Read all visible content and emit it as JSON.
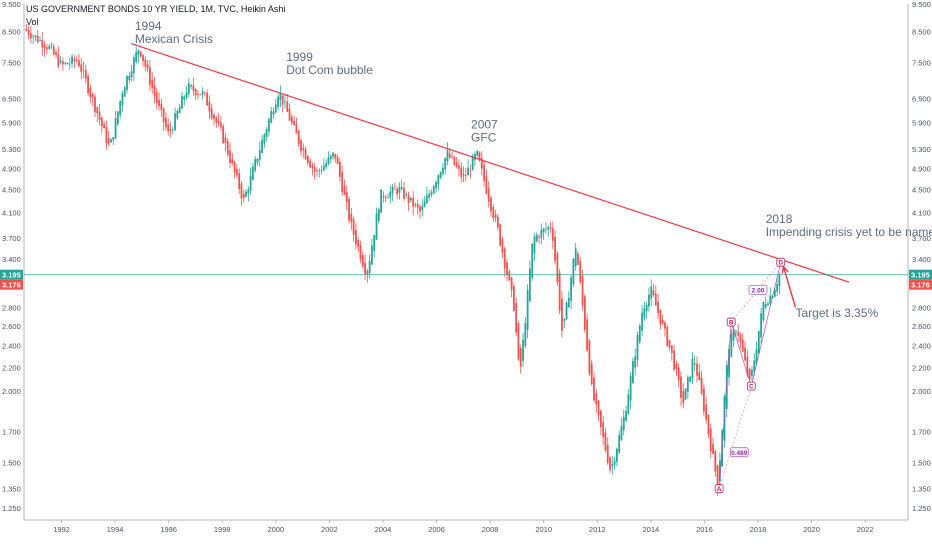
{
  "header": {
    "symbol_line": "US GOVERNMENT BONDS 10 YR YIELD, 1M, TVC, Heikin Ashi",
    "volume_label": "Vol"
  },
  "annotations": [
    {
      "line1": "1994",
      "line2": "Mexican Crisis",
      "year": 1994.85,
      "yield": 8.55
    },
    {
      "line1": "1999",
      "line2": "Dot Com bubble",
      "year": 2000.5,
      "yield": 7.55
    },
    {
      "line1": "2007",
      "line2": "GFC",
      "year": 2007.4,
      "yield": 5.75
    },
    {
      "line1": "2018",
      "line2": "Impending crisis yet to be named?",
      "year": 2018.4,
      "yield": 3.93
    }
  ],
  "target_text": "Target is 3.35%",
  "price_labels": {
    "current": "3.195",
    "prior_close": "3.176"
  },
  "colors": {
    "up": "#26a69a",
    "down": "#ef5350",
    "trendline": "#f23645",
    "pattern": "#ab47bc",
    "current_line": "#26a69a"
  },
  "chart_data": {
    "type": "candlestick",
    "style": "Heikin Ashi",
    "y_scale": "log",
    "xlim": [
      1990.6,
      2023.6
    ],
    "ylim": [
      1.19,
      9.5
    ],
    "x_ticks": [
      "1992",
      "1994",
      "1996",
      "1998",
      "2000",
      "2002",
      "2004",
      "2006",
      "2008",
      "2010",
      "2012",
      "2014",
      "2016",
      "2018",
      "2020",
      "2022"
    ],
    "y_ticks": [
      "9.500",
      "8.500",
      "7.500",
      "6.500",
      "5.900",
      "5.300",
      "4.900",
      "4.500",
      "4.100",
      "3.700",
      "3.400",
      "3.100",
      "2.800",
      "2.600",
      "2.400",
      "2.200",
      "2.000",
      "1.700",
      "1.500",
      "1.350",
      "1.250"
    ],
    "series_path": [
      {
        "x": 1990.6,
        "y": 8.6
      },
      {
        "x": 1991.5,
        "y": 8.0
      },
      {
        "x": 1992.0,
        "y": 7.4
      },
      {
        "x": 1992.6,
        "y": 7.6
      },
      {
        "x": 1993.3,
        "y": 6.2
      },
      {
        "x": 1993.8,
        "y": 5.3
      },
      {
        "x": 1994.3,
        "y": 6.8
      },
      {
        "x": 1994.9,
        "y": 8.0
      },
      {
        "x": 1995.6,
        "y": 6.3
      },
      {
        "x": 1996.0,
        "y": 5.6
      },
      {
        "x": 1996.7,
        "y": 6.8
      },
      {
        "x": 1997.3,
        "y": 6.6
      },
      {
        "x": 1998.0,
        "y": 5.6
      },
      {
        "x": 1998.8,
        "y": 4.3
      },
      {
        "x": 1999.5,
        "y": 5.5
      },
      {
        "x": 2000.1,
        "y": 6.7
      },
      {
        "x": 2000.9,
        "y": 5.4
      },
      {
        "x": 2001.5,
        "y": 4.8
      },
      {
        "x": 2002.2,
        "y": 5.2
      },
      {
        "x": 2002.8,
        "y": 3.9
      },
      {
        "x": 2003.4,
        "y": 3.2
      },
      {
        "x": 2003.9,
        "y": 4.4
      },
      {
        "x": 2004.6,
        "y": 4.5
      },
      {
        "x": 2005.4,
        "y": 4.1
      },
      {
        "x": 2006.4,
        "y": 5.2
      },
      {
        "x": 2007.0,
        "y": 4.7
      },
      {
        "x": 2007.5,
        "y": 5.2
      },
      {
        "x": 2008.3,
        "y": 3.8
      },
      {
        "x": 2008.9,
        "y": 2.8
      },
      {
        "x": 2009.1,
        "y": 2.1
      },
      {
        "x": 2009.6,
        "y": 3.7
      },
      {
        "x": 2010.3,
        "y": 3.9
      },
      {
        "x": 2010.7,
        "y": 2.5
      },
      {
        "x": 2011.2,
        "y": 3.6
      },
      {
        "x": 2011.8,
        "y": 2.0
      },
      {
        "x": 2012.5,
        "y": 1.45
      },
      {
        "x": 2013.0,
        "y": 1.8
      },
      {
        "x": 2013.7,
        "y": 2.8
      },
      {
        "x": 2014.0,
        "y": 3.0
      },
      {
        "x": 2014.8,
        "y": 2.3
      },
      {
        "x": 2015.2,
        "y": 1.9
      },
      {
        "x": 2015.6,
        "y": 2.3
      },
      {
        "x": 2016.0,
        "y": 1.85
      },
      {
        "x": 2016.5,
        "y": 1.37
      },
      {
        "x": 2016.9,
        "y": 2.4
      },
      {
        "x": 2017.2,
        "y": 2.6
      },
      {
        "x": 2017.7,
        "y": 2.05
      },
      {
        "x": 2018.2,
        "y": 2.85
      },
      {
        "x": 2018.5,
        "y": 2.95
      },
      {
        "x": 2018.8,
        "y": 3.195
      }
    ],
    "trendline": {
      "from": {
        "x": 1994.6,
        "y": 8.1
      },
      "to": {
        "x": 2021.4,
        "y": 3.1
      }
    },
    "current_value": 3.195,
    "pattern": {
      "type": "XABCD",
      "points": [
        {
          "label": "A",
          "x": 2016.55,
          "y": 1.35
        },
        {
          "label": "B",
          "x": 2017.0,
          "y": 2.64
        },
        {
          "label": "C",
          "x": 2017.75,
          "y": 2.04
        },
        {
          "label": "D",
          "x": 2018.85,
          "y": 3.36
        }
      ],
      "ratios": [
        {
          "value": "0.489",
          "x": 2017.3,
          "y": 1.56
        },
        {
          "value": "2.00",
          "x": 2018.0,
          "y": 3.0
        }
      ]
    },
    "target": 3.35,
    "arrow": {
      "from": {
        "x": 2019.4,
        "y": 2.8
      },
      "to": {
        "x": 2018.95,
        "y": 3.3
      }
    }
  }
}
